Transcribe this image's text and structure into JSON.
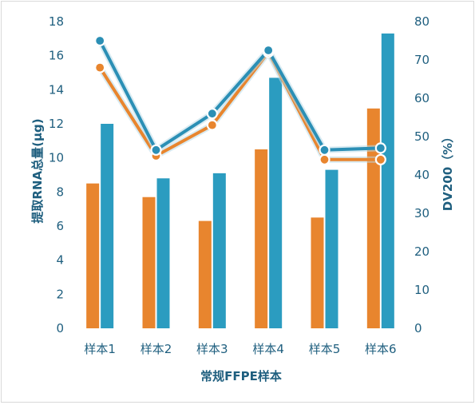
{
  "chart_data": {
    "type": "bar+line",
    "categories": [
      "样本1",
      "样本2",
      "样本3",
      "样本4",
      "样本5",
      "样本6"
    ],
    "xlabel": "常规FFPE样本",
    "ylabel_left": "提取RNA总量(μg)",
    "ylabel_right": "DV200（%）",
    "ylim_left": [
      0,
      18
    ],
    "yticks_left": [
      0,
      2,
      4,
      6,
      8,
      10,
      12,
      14,
      16,
      18
    ],
    "ylim_right": [
      0,
      80
    ],
    "yticks_right": [
      0,
      10,
      20,
      30,
      40,
      50,
      60,
      70,
      80
    ],
    "grid": false,
    "legend": "none",
    "bars_left_axis": [
      {
        "color": "#e8852e",
        "values": [
          8.5,
          7.7,
          6.3,
          10.5,
          6.5,
          12.9
        ]
      },
      {
        "color": "#2b9cc0",
        "values": [
          12.0,
          8.8,
          9.1,
          14.7,
          9.3,
          17.3
        ]
      }
    ],
    "lines_right_axis": [
      {
        "color": "#e8852e",
        "values": [
          68,
          45,
          53,
          72,
          44,
          44
        ]
      },
      {
        "color": "#2b8fb5",
        "values": [
          75,
          46.5,
          56,
          72.5,
          46.5,
          47
        ]
      }
    ]
  }
}
